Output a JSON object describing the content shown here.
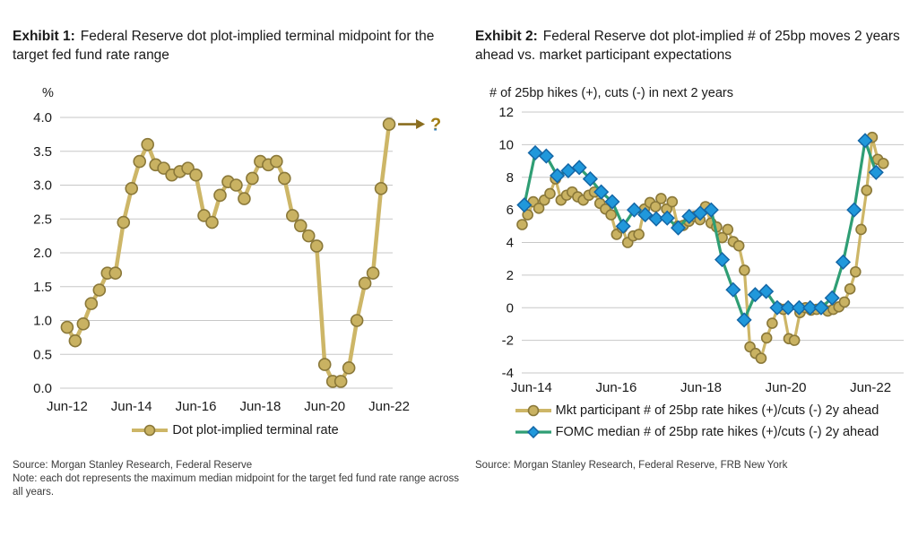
{
  "exhibit1": {
    "title_label": "Exhibit 1:",
    "title_text": "Federal Reserve dot plot-implied terminal midpoint for the target fed fund rate range",
    "axis_unit": "%",
    "legend": [
      {
        "name": "Dot plot-implied terminal rate",
        "marker": "circle"
      }
    ],
    "source": "Source: Morgan Stanley Research, Federal Reserve",
    "note": "Note: each dot represents the maximum median midpoint for the target fed fund rate range across all years."
  },
  "exhibit2": {
    "title_label": "Exhibit 2:",
    "title_text": "Federal Reserve dot plot-implied # of 25bp moves 2 years ahead vs. market participant expectations",
    "axis_unit": "# of 25bp hikes (+), cuts (-) in next 2 years",
    "legend": [
      {
        "name": "Mkt participant # of 25bp rate hikes (+)/cuts (-) 2y ahead",
        "marker": "circle"
      },
      {
        "name": "FOMC median # of 25bp rate hikes (+)/cuts (-) 2y ahead",
        "marker": "diamond"
      }
    ],
    "source": "Source: Morgan Stanley Research, Federal Reserve, FRB New York"
  },
  "colors": {
    "gold_line": "#CDB667",
    "gold_fill": "#C9B262",
    "gold_stroke": "#8A7839",
    "green_line": "#2F9E74",
    "blue_fill": "#2098DB",
    "blue_stroke": "#1366A6",
    "grid": "#c7c7c7",
    "text": "#1a1a1a",
    "arrow": "#8a6d1f",
    "question_gold": "#a07d14",
    "question_blue": "#2d7fc1"
  },
  "chart_data": [
    {
      "type": "line",
      "title": "Exhibit 1: Federal Reserve dot plot-implied terminal midpoint for the target fed fund rate range",
      "xlabel": "",
      "ylabel": "%",
      "ylim": [
        0,
        4.0
      ],
      "ytick_step": 0.5,
      "ytick_decimals": 1,
      "grid": true,
      "legend_position": "bottom",
      "xlim": [
        2012.2,
        2022.53
      ],
      "xticks": [
        {
          "label": "Jun-12",
          "pos": 2012.42
        },
        {
          "label": "Jun-14",
          "pos": 2014.42
        },
        {
          "label": "Jun-16",
          "pos": 2016.42
        },
        {
          "label": "Jun-18",
          "pos": 2018.42
        },
        {
          "label": "Jun-20",
          "pos": 2020.42
        },
        {
          "label": "Jun-22",
          "pos": 2022.42
        }
      ],
      "series": [
        {
          "id": "terminal-rate",
          "name": "Dot plot-implied terminal rate",
          "marker": "circle",
          "line_color": "#CDB667",
          "marker_fill": "#C9B262",
          "marker_stroke": "#8A7839",
          "x_start": 2012.42,
          "x_end": 2022.42,
          "end_annotation": "?",
          "values": [
            0.9,
            0.7,
            0.95,
            1.25,
            1.45,
            1.7,
            1.7,
            2.45,
            2.95,
            3.35,
            3.6,
            3.3,
            3.25,
            3.15,
            3.2,
            3.25,
            3.15,
            2.55,
            2.45,
            2.85,
            3.05,
            3.0,
            2.8,
            3.1,
            3.35,
            3.3,
            3.35,
            3.1,
            2.55,
            2.4,
            2.25,
            2.1,
            0.35,
            0.1,
            0.1,
            0.3,
            1.0,
            1.55,
            1.7,
            2.95,
            3.9
          ]
        }
      ]
    },
    {
      "type": "line",
      "title": "Exhibit 2: Federal Reserve dot plot-implied # of 25bp moves 2 years ahead vs. market participant expectations",
      "xlabel": "",
      "ylabel": "# of 25bp hikes (+), cuts (-) in next 2 years",
      "ylim": [
        -4,
        12
      ],
      "ytick_step": 2,
      "ytick_decimals": 0,
      "grid": true,
      "legend_position": "bottom",
      "xlim": [
        2014.19,
        2023.2
      ],
      "xticks": [
        {
          "label": "Jun-14",
          "pos": 2014.42
        },
        {
          "label": "Jun-16",
          "pos": 2016.42
        },
        {
          "label": "Jun-18",
          "pos": 2018.42
        },
        {
          "label": "Jun-20",
          "pos": 2020.42
        },
        {
          "label": "Jun-22",
          "pos": 2022.42
        }
      ],
      "series": [
        {
          "id": "mkt-participant",
          "name": "Mkt participant # of 25bp rate hikes (+)/cuts (-) 2y ahead",
          "marker": "circle",
          "line_color": "#CDB667",
          "marker_fill": "#C9B262",
          "marker_stroke": "#8A7839",
          "x_start": 2014.2,
          "x_end": 2022.72,
          "values": [
            5.1,
            5.7,
            6.5,
            6.1,
            6.6,
            7.0,
            7.9,
            6.6,
            6.9,
            7.1,
            6.8,
            6.6,
            6.9,
            7.1,
            6.4,
            6.05,
            5.7,
            4.5,
            4.9,
            4.0,
            4.4,
            4.5,
            6.05,
            6.45,
            6.2,
            6.7,
            6.05,
            6.5,
            5.0,
            5.05,
            5.3,
            5.6,
            5.4,
            6.2,
            5.2,
            4.95,
            4.3,
            4.8,
            4.05,
            3.8,
            2.3,
            -2.4,
            -2.8,
            -3.1,
            -1.85,
            -0.95,
            0.0,
            -0.1,
            -1.9,
            -2.0,
            -0.3,
            0.0,
            -0.15,
            -0.1,
            0.0,
            -0.2,
            -0.1,
            0.05,
            0.35,
            1.15,
            2.2,
            4.8,
            7.2,
            10.45,
            9.1,
            8.85
          ]
        },
        {
          "id": "fomc-median",
          "name": "FOMC median # of 25bp rate hikes (+)/cuts (-) 2y ahead",
          "marker": "diamond",
          "line_color": "#2F9E74",
          "marker_fill": "#2098DB",
          "marker_stroke": "#1366A6",
          "x_start": 2014.25,
          "x_end": 2022.55,
          "values": [
            6.3,
            9.5,
            9.3,
            8.1,
            8.4,
            8.6,
            7.9,
            7.1,
            6.5,
            5.0,
            6.0,
            5.7,
            5.45,
            5.5,
            4.9,
            5.6,
            5.8,
            6.0,
            2.95,
            1.1,
            -0.75,
            0.8,
            1.0,
            0.0,
            0.0,
            0.0,
            0.0,
            0.0,
            0.6,
            2.8,
            6.0,
            10.25,
            8.3
          ]
        }
      ]
    }
  ]
}
